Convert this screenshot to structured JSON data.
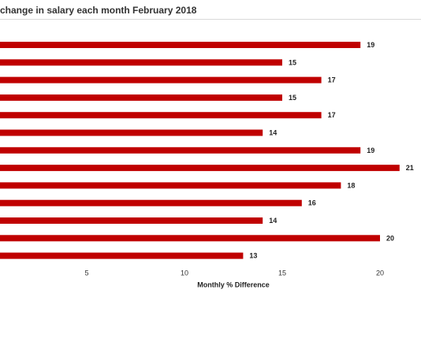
{
  "chart_data": {
    "type": "bar",
    "orientation": "horizontal",
    "title": "change in salary each month February 2018",
    "xlabel": "Monthly % Difference",
    "ylabel": "",
    "values": [
      19,
      15,
      17,
      15,
      17,
      14,
      19,
      21,
      18,
      16,
      14,
      20,
      13
    ],
    "xlim": [
      0,
      21
    ],
    "x_ticks": [
      5,
      10,
      15,
      20
    ],
    "grid": false,
    "legend": "none",
    "bar_color": "#c00000"
  }
}
